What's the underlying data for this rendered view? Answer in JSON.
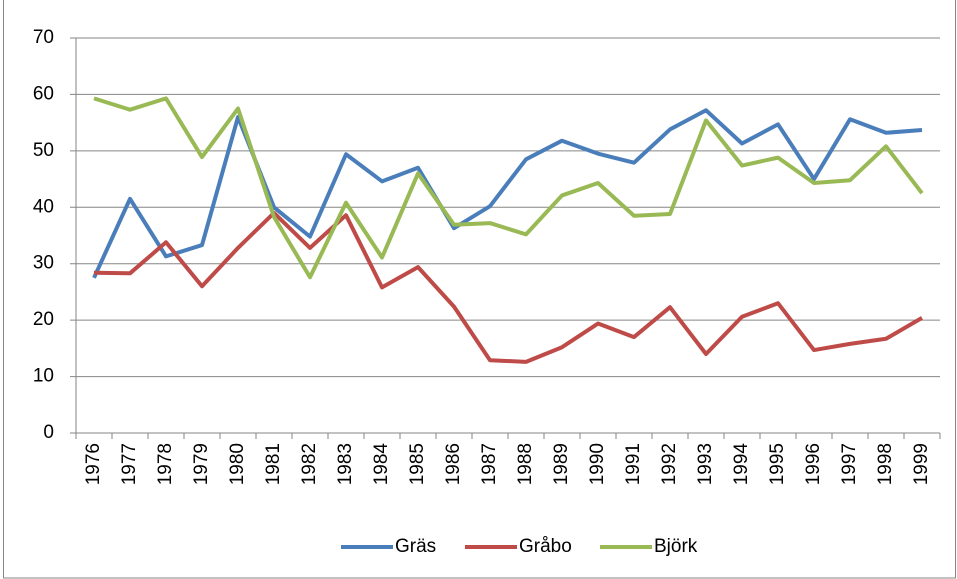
{
  "chart_data": {
    "type": "line",
    "categories": [
      "1976",
      "1977",
      "1978",
      "1979",
      "1980",
      "1981",
      "1982",
      "1983",
      "1984",
      "1985",
      "1986",
      "1987",
      "1988",
      "1989",
      "1990",
      "1991",
      "1992",
      "1993",
      "1994",
      "1995",
      "1996",
      "1997",
      "1998",
      "1999"
    ],
    "series": [
      {
        "name": "Gräs",
        "color": "#4a7ebb",
        "values": [
          27.5,
          41.5,
          31.3,
          33.3,
          56,
          40,
          34.8,
          49.4,
          44.6,
          47,
          36.3,
          40.2,
          48.5,
          51.8,
          49.5,
          47.9,
          53.8,
          57.2,
          51.3,
          54.7,
          45,
          55.6,
          53.2,
          53.7
        ]
      },
      {
        "name": "Gråbo",
        "color": "#be4b48",
        "values": [
          28.4,
          28.3,
          33.8,
          26,
          32.8,
          39,
          32.8,
          38.6,
          25.8,
          29.4,
          22.4,
          12.9,
          12.6,
          15.2,
          19.4,
          17,
          22.3,
          14,
          20.6,
          23,
          14.7,
          15.8,
          16.7,
          20.4
        ]
      },
      {
        "name": "Björk",
        "color": "#98b954",
        "values": [
          59.3,
          57.3,
          59.3,
          48.9,
          57.5,
          38.3,
          27.6,
          40.8,
          31.1,
          46,
          36.9,
          37.2,
          35.2,
          42.1,
          44.3,
          38.5,
          38.8,
          55.4,
          47.4,
          48.8,
          44.3,
          44.8,
          50.8,
          42.5
        ]
      }
    ],
    "ylim": [
      0,
      70
    ],
    "yticks": [
      0,
      10,
      20,
      30,
      40,
      50,
      60,
      70
    ],
    "grid": true,
    "legend": "bottom"
  }
}
